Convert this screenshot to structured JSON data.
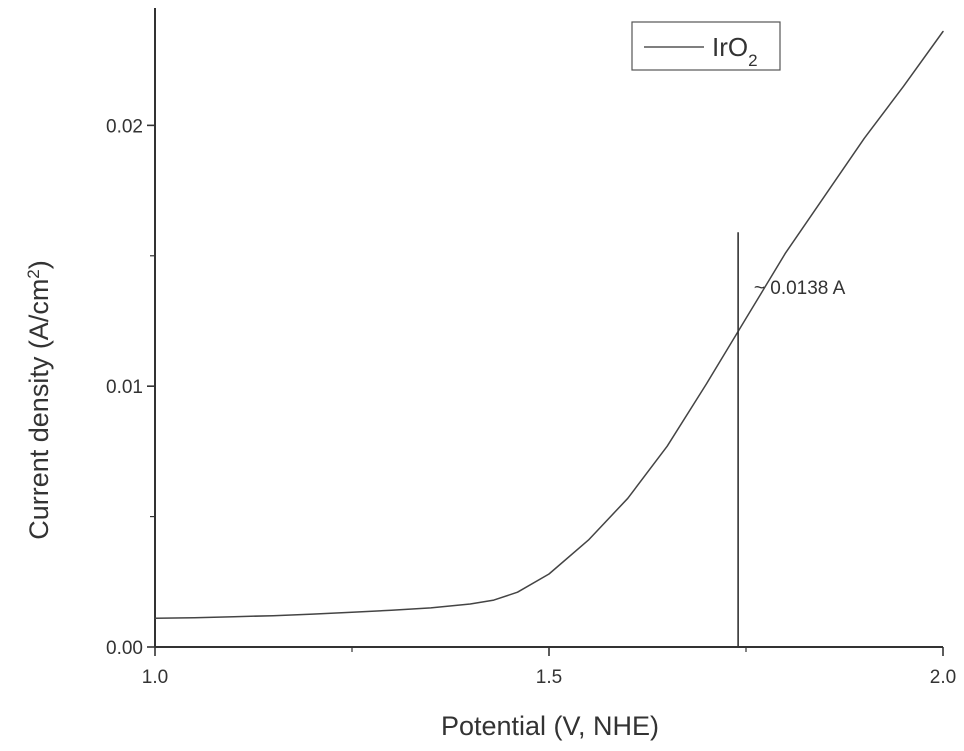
{
  "chart_data": {
    "type": "line",
    "title": "",
    "xlabel": "Potential (V, NHE)",
    "ylabel": {
      "main": "Current density (A/cm",
      "sup": "2",
      "tail": ")"
    },
    "xlim": [
      1.0,
      2.0
    ],
    "ylim": [
      0.0,
      0.0245
    ],
    "x_ticks": [
      1.0,
      1.5,
      2.0
    ],
    "x_tick_labels": [
      "1.0",
      "1.5",
      "2.0"
    ],
    "x_minor_ticks": [
      1.25,
      1.75
    ],
    "y_ticks": [
      0.0,
      0.01,
      0.02
    ],
    "y_tick_labels": [
      "0.00",
      "0.01",
      "0.02"
    ],
    "y_minor_ticks": [
      0.005,
      0.015
    ],
    "grid": false,
    "legend": {
      "position": "top-right",
      "entries": [
        {
          "main": "IrO",
          "sub": "2"
        }
      ]
    },
    "series": [
      {
        "name": "IrO2",
        "color": "#444444",
        "x": [
          1.0,
          1.05,
          1.1,
          1.15,
          1.2,
          1.25,
          1.3,
          1.35,
          1.4,
          1.43,
          1.46,
          1.5,
          1.55,
          1.6,
          1.65,
          1.7,
          1.75,
          1.8,
          1.85,
          1.9,
          1.95,
          2.0
        ],
        "y": [
          0.0011,
          0.00112,
          0.00116,
          0.0012,
          0.00126,
          0.00133,
          0.00141,
          0.0015,
          0.00165,
          0.0018,
          0.0021,
          0.0028,
          0.0041,
          0.0057,
          0.0077,
          0.0101,
          0.0126,
          0.0151,
          0.0173,
          0.0195,
          0.0215,
          0.0236
        ]
      }
    ],
    "annotations": [
      {
        "type": "vline",
        "x": 1.74,
        "y_top": 0.0159
      },
      {
        "type": "label",
        "text": "~ 0.0138 A",
        "x": 1.76,
        "y": 0.0138
      }
    ]
  }
}
